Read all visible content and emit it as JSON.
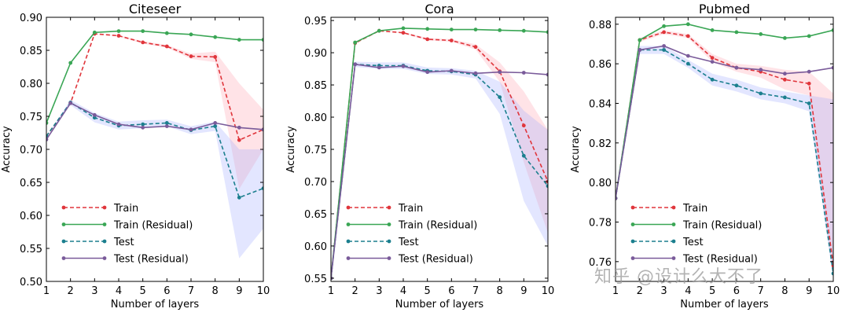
{
  "watermark": "知乎 @设计么大不了",
  "colors": {
    "train": "#e0353b",
    "train_residual": "#3aa655",
    "test": "#1b7f8e",
    "test_residual": "#7a5b9a"
  },
  "chart_data": [
    {
      "type": "line",
      "title": "Citeseer",
      "xlabel": "Number of layers",
      "ylabel": "Accuracy",
      "xlim": [
        1,
        10
      ],
      "ylim": [
        0.5,
        0.9
      ],
      "xticks": [
        "1",
        "2",
        "3",
        "4",
        "5",
        "6",
        "7",
        "8",
        "9",
        "10"
      ],
      "yticks": [
        "0.50",
        "0.55",
        "0.60",
        "0.65",
        "0.70",
        "0.75",
        "0.80",
        "0.85",
        "0.90"
      ],
      "legend_position": "lower-left",
      "x": [
        1,
        2,
        3,
        4,
        5,
        6,
        7,
        8,
        9,
        10
      ],
      "series": [
        {
          "name": "Train",
          "style": "dashed",
          "values": [
            0.72,
            0.77,
            0.875,
            0.872,
            0.862,
            0.856,
            0.841,
            0.84,
            0.714,
            0.73
          ],
          "band_upper": [
            0.72,
            0.77,
            0.875,
            0.873,
            0.864,
            0.858,
            0.845,
            0.848,
            0.8,
            0.76
          ],
          "band_lower": [
            0.72,
            0.77,
            0.875,
            0.871,
            0.86,
            0.854,
            0.837,
            0.832,
            0.64,
            0.7
          ]
        },
        {
          "name": "Train (Residual)",
          "style": "solid",
          "values": [
            0.74,
            0.831,
            0.877,
            0.879,
            0.879,
            0.876,
            0.874,
            0.87,
            0.866,
            0.866
          ]
        },
        {
          "name": "Test",
          "style": "dashed",
          "values": [
            0.72,
            0.771,
            0.748,
            0.736,
            0.738,
            0.74,
            0.729,
            0.735,
            0.627,
            0.641
          ],
          "band_upper": [
            0.72,
            0.775,
            0.755,
            0.742,
            0.744,
            0.745,
            0.735,
            0.742,
            0.7,
            0.7
          ],
          "band_lower": [
            0.72,
            0.767,
            0.741,
            0.73,
            0.732,
            0.735,
            0.723,
            0.728,
            0.535,
            0.58
          ]
        },
        {
          "name": "Test (Residual)",
          "style": "solid",
          "values": [
            0.715,
            0.77,
            0.752,
            0.738,
            0.733,
            0.735,
            0.73,
            0.74,
            0.733,
            0.73
          ]
        }
      ]
    },
    {
      "type": "line",
      "title": "Cora",
      "xlabel": "Number of layers",
      "ylabel": "Accuracy",
      "xlim": [
        1,
        10
      ],
      "ylim": [
        0.545,
        0.955
      ],
      "xticks": [
        "1",
        "2",
        "3",
        "4",
        "5",
        "6",
        "7",
        "8",
        "9",
        "10"
      ],
      "yticks": [
        "0.55",
        "0.60",
        "0.65",
        "0.70",
        "0.75",
        "0.80",
        "0.85",
        "0.90",
        "0.95"
      ],
      "legend_position": "lower-left",
      "x": [
        1,
        2,
        3,
        4,
        5,
        6,
        7,
        8,
        9,
        10
      ],
      "series": [
        {
          "name": "Train",
          "style": "dashed",
          "values": [
            0.55,
            0.915,
            0.934,
            0.931,
            0.921,
            0.919,
            0.909,
            0.871,
            0.787,
            0.7
          ],
          "band_upper": [
            0.55,
            0.915,
            0.934,
            0.932,
            0.923,
            0.921,
            0.913,
            0.885,
            0.84,
            0.78
          ],
          "band_lower": [
            0.55,
            0.915,
            0.934,
            0.93,
            0.919,
            0.917,
            0.905,
            0.855,
            0.73,
            0.62
          ]
        },
        {
          "name": "Train (Residual)",
          "style": "solid",
          "values": [
            0.55,
            0.916,
            0.934,
            0.938,
            0.937,
            0.936,
            0.936,
            0.935,
            0.934,
            0.932
          ]
        },
        {
          "name": "Test",
          "style": "dashed",
          "values": [
            0.55,
            0.882,
            0.88,
            0.88,
            0.872,
            0.871,
            0.866,
            0.831,
            0.74,
            0.693
          ],
          "band_upper": [
            0.55,
            0.886,
            0.885,
            0.885,
            0.877,
            0.876,
            0.872,
            0.855,
            0.81,
            0.78
          ],
          "band_lower": [
            0.55,
            0.878,
            0.875,
            0.875,
            0.867,
            0.866,
            0.86,
            0.805,
            0.67,
            0.6
          ]
        },
        {
          "name": "Test (Residual)",
          "style": "solid",
          "values": [
            0.55,
            0.882,
            0.877,
            0.879,
            0.87,
            0.872,
            0.868,
            0.87,
            0.869,
            0.866
          ]
        }
      ]
    },
    {
      "type": "line",
      "title": "Pubmed",
      "xlabel": "Number of layers",
      "ylabel": "Accuracy",
      "xlim": [
        1,
        10
      ],
      "ylim": [
        0.75,
        0.8835
      ],
      "xticks": [
        "1",
        "2",
        "3",
        "4",
        "5",
        "6",
        "7",
        "8",
        "9",
        "10"
      ],
      "yticks": [
        "0.76",
        "0.78",
        "0.80",
        "0.82",
        "0.84",
        "0.86",
        "0.88"
      ],
      "legend_position": "lower-left",
      "x": [
        1,
        2,
        3,
        4,
        5,
        6,
        7,
        8,
        9,
        10
      ],
      "series": [
        {
          "name": "Train",
          "style": "dashed",
          "values": [
            0.792,
            0.872,
            0.876,
            0.874,
            0.863,
            0.858,
            0.856,
            0.852,
            0.85,
            0.758
          ],
          "band_upper": [
            0.792,
            0.873,
            0.877,
            0.875,
            0.865,
            0.86,
            0.859,
            0.857,
            0.856,
            0.845
          ],
          "band_lower": [
            0.792,
            0.871,
            0.875,
            0.873,
            0.861,
            0.856,
            0.853,
            0.847,
            0.844,
            0.752
          ]
        },
        {
          "name": "Train (Residual)",
          "style": "solid",
          "values": [
            0.792,
            0.872,
            0.879,
            0.88,
            0.877,
            0.876,
            0.875,
            0.873,
            0.874,
            0.877
          ]
        },
        {
          "name": "Test",
          "style": "dashed",
          "values": [
            0.792,
            0.867,
            0.867,
            0.86,
            0.852,
            0.849,
            0.845,
            0.843,
            0.84,
            0.754
          ],
          "band_upper": [
            0.792,
            0.869,
            0.869,
            0.862,
            0.855,
            0.852,
            0.848,
            0.846,
            0.844,
            0.842
          ],
          "band_lower": [
            0.792,
            0.865,
            0.865,
            0.858,
            0.849,
            0.846,
            0.842,
            0.84,
            0.836,
            0.751
          ]
        },
        {
          "name": "Test (Residual)",
          "style": "solid",
          "values": [
            0.792,
            0.867,
            0.869,
            0.864,
            0.861,
            0.858,
            0.857,
            0.855,
            0.856,
            0.858
          ]
        }
      ]
    }
  ]
}
